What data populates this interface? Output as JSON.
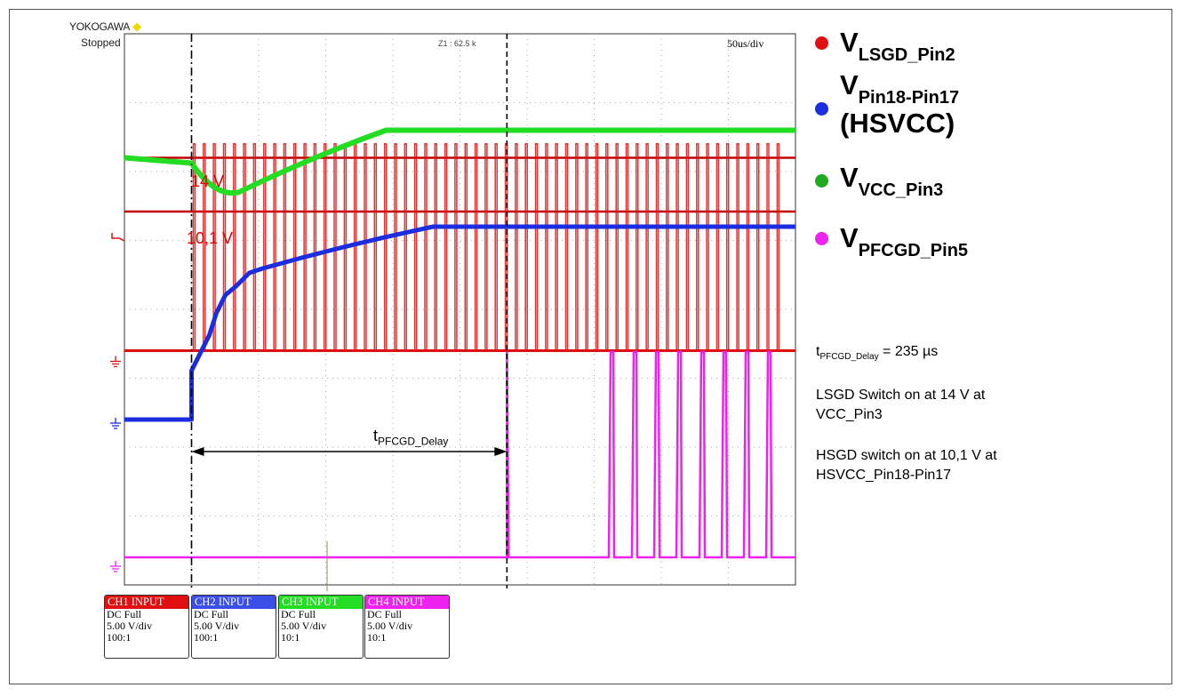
{
  "header": {
    "brand": "YOKOGAWA",
    "brand_mark": "diamond",
    "status": "Stopped"
  },
  "scope": {
    "zoom_text": "Z1 : 62.5 k",
    "time_div": "50us/div",
    "level_labels": [
      {
        "text": "14 V",
        "color": "#e00000"
      },
      {
        "text": "10,1 V",
        "color": "#e00000"
      }
    ],
    "delay_label": {
      "main": "t",
      "sub": "PFCGD_Delay"
    }
  },
  "chart_data": {
    "type": "line",
    "title": "",
    "xlabel": "",
    "ylabel": "",
    "time_per_div_us": 50,
    "x_divisions": 10,
    "y_divisions": 8,
    "grid": true,
    "series": [
      {
        "name": "CH1 LSGD_Pin2",
        "color": "#e01010",
        "volts_per_div": 5.0,
        "ground_div": 3.4,
        "low_V": 0,
        "pulse_high_V": 14.5,
        "start_us": 50,
        "switching": true
      },
      {
        "name": "CH2 HSVCC Pin18-Pin17",
        "color": "#1a2ee0",
        "volts_per_div": 5.0,
        "ground_div": 2.4,
        "start_V": 0,
        "end_V": 14.0,
        "start_us": 50
      },
      {
        "name": "CH3 VCC_Pin3",
        "color": "#22dd22",
        "volts_per_div": 5.0,
        "initial_V": 14.0,
        "dip_V": 11.5,
        "final_V": 16.0
      },
      {
        "name": "CH4 PFCGD_Pin5",
        "color": "#ee22ee",
        "volts_per_div": 5.0,
        "ground_div": 0.4,
        "pulse_high_V": 12.0,
        "start_us": 285
      }
    ],
    "thresholds_V": [
      14,
      10.1
    ],
    "cursors_us": [
      50,
      285
    ],
    "delay_us": 235
  },
  "legend": [
    {
      "main": "V",
      "sub": "LSGD_Pin2",
      "color": "#e01010"
    },
    {
      "main": "V",
      "sub": "Pin18-Pin17",
      "extra": "(HSVCC)",
      "color": "#1a2ee0"
    },
    {
      "main": "V",
      "sub": "VCC_Pin3",
      "color": "#22aa22"
    },
    {
      "main": "V",
      "sub": "PFCGD_Pin5",
      "color": "#ee22ee"
    }
  ],
  "notes": {
    "delay_main": "t",
    "delay_sub": "PFCGD_Delay",
    "delay_value": " = 235 µs",
    "note2_line1": "LSGD Switch on at 14 V at",
    "note2_line2": "VCC_Pin3",
    "note3_line1": "HSGD switch on at 10,1 V at",
    "note3_line2": "HSVCC_Pin18-Pin17"
  },
  "channels": [
    {
      "header": "CH1 INPUT",
      "color": "#e01010",
      "coupling": "DC Full",
      "scale": "5.00 V/div",
      "probe": "100:1"
    },
    {
      "header": "CH2 INPUT",
      "color": "#3b4ee8",
      "coupling": "DC Full",
      "scale": "5.00 V/div",
      "probe": "100:1"
    },
    {
      "header": "CH3 INPUT",
      "color": "#22dd22",
      "coupling": "DC Full",
      "scale": "5.00 V/div",
      "probe": "10:1"
    },
    {
      "header": "CH4 INPUT",
      "color": "#ee22ee",
      "coupling": "DC Full",
      "scale": "5.00 V/div",
      "probe": "10:1"
    }
  ]
}
